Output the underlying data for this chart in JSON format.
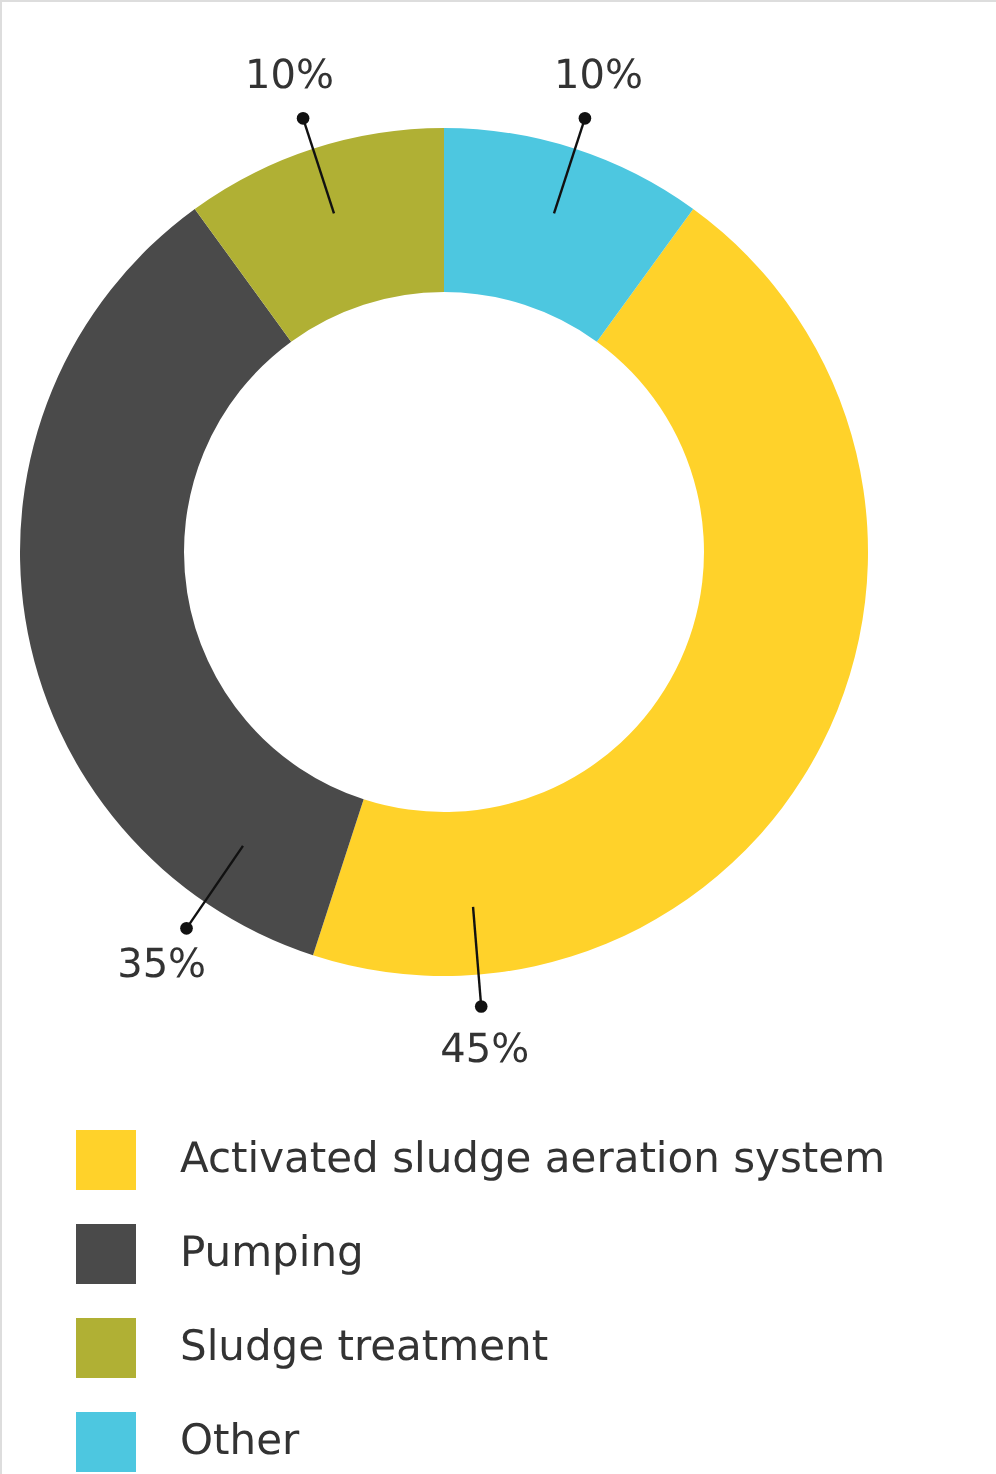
{
  "chart_data": {
    "type": "donut",
    "categories": [
      "Activated sludge aeration system",
      "Pumping",
      "Sludge treatment",
      "Other"
    ],
    "values": [
      45,
      35,
      10,
      10
    ],
    "value_labels": [
      "45%",
      "35%",
      "10%",
      "10%"
    ],
    "colors": [
      "#ffd22a",
      "#4a4a4a",
      "#b0b034",
      "#4dc7e0"
    ],
    "legend": "bottom"
  }
}
